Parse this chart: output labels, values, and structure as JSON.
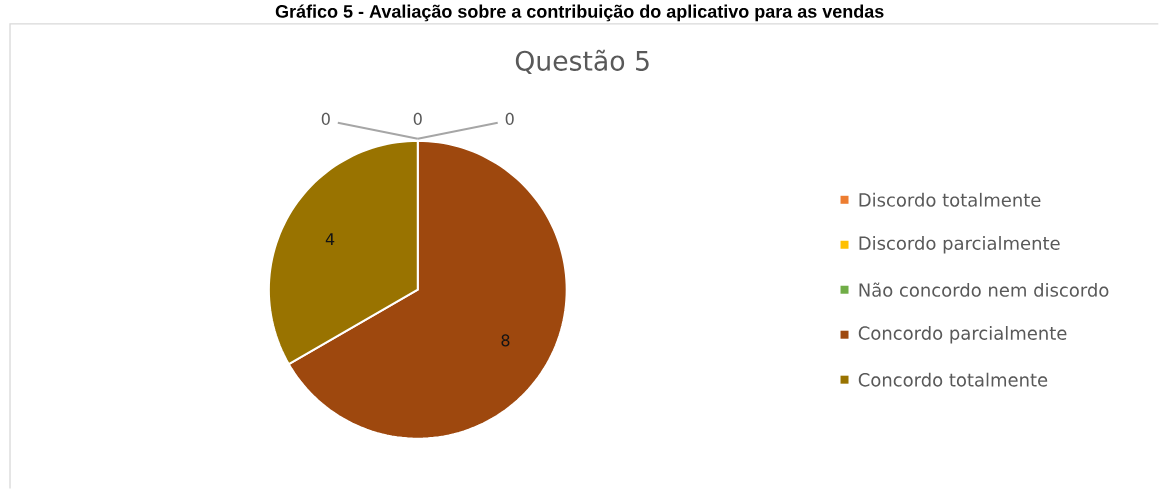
{
  "chart_data": {
    "type": "pie",
    "title": "Gráfico 5 - Avaliação sobre a contribuição do aplicativo para as vendas",
    "subtitle": "Questão 5",
    "categories": [
      "Discordo totalmente",
      "Discordo parcialmente",
      "Não concordo nem discordo",
      "Concordo parcialmente",
      "Concordo totalmente"
    ],
    "values": [
      0,
      0,
      0,
      8,
      4
    ],
    "colors": [
      "#ed7d31",
      "#ffc000",
      "#70ad47",
      "#9e480e",
      "#997300"
    ],
    "value_labels": [
      "0",
      "0",
      "0",
      "8",
      "4"
    ],
    "legend": "right"
  }
}
